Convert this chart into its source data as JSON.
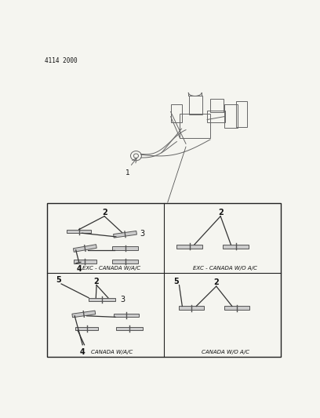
{
  "title_code": "4114 2000",
  "bg_color": "#f5f5f0",
  "border_color": "#222222",
  "text_color": "#111111",
  "fig_width": 4.08,
  "fig_height": 5.33,
  "dpi": 100,
  "quadrant_labels": {
    "TL": "EXC - CANADA W/A/C",
    "TR": "EXC - CANADA W/O A/C",
    "BL": "CANADA W/A/C",
    "BR": "CANADA W/O A/C"
  }
}
